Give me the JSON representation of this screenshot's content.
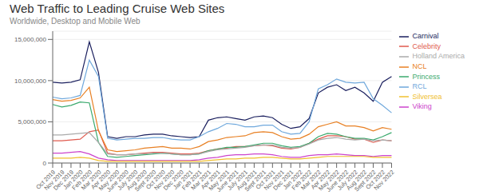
{
  "chart_data": {
    "type": "line",
    "title": "Web Traffic to Leading Cruise Web Sites",
    "subtitle": "Worldwide, Desktop and Mobile Web",
    "categories": [
      "Oct 2019",
      "Nov 2019",
      "Dec 2019",
      "Jan 2020",
      "Feb 2020",
      "Mar 2020",
      "Apr 2020",
      "May 2020",
      "June 2020",
      "July 2020",
      "Aug 2020",
      "Sept 2020",
      "Oct 2020",
      "Nov 2020",
      "Dec 2020",
      "Jan 2021",
      "Feb 2021",
      "Mar 2021",
      "Apr 2021",
      "May 2021",
      "June 2021",
      "July 2021",
      "Aug 2021",
      "Sept 2021",
      "Oct 2021",
      "Nov 2021",
      "Dec 2021",
      "Jan 2022",
      "Feb 2022",
      "Mar 2022",
      "Apr 2022",
      "May 2022",
      "June 2022",
      "July 2022",
      "Aug 2022",
      "Sept 2022",
      "Oct 2022",
      "Nov 2022"
    ],
    "series": [
      {
        "name": "Carnival",
        "color": "#1a1f5e",
        "values": [
          9800000,
          9700000,
          9800000,
          10100000,
          14700000,
          11000000,
          3200000,
          3000000,
          3200000,
          3200000,
          3400000,
          3500000,
          3500000,
          3300000,
          3200000,
          3100000,
          3200000,
          5200000,
          5500000,
          5600000,
          5400000,
          5200000,
          5600000,
          5700000,
          5500000,
          4700000,
          4200000,
          4400000,
          5400000,
          8500000,
          9200000,
          9500000,
          8800000,
          9200000,
          8500000,
          7500000,
          9800000,
          10500000
        ]
      },
      {
        "name": "Celebrity",
        "color": "#e05a4e",
        "values": [
          2700000,
          2700000,
          2800000,
          2900000,
          3800000,
          4000000,
          1200000,
          1000000,
          1000000,
          1100000,
          1200000,
          1300000,
          1300000,
          1200000,
          1100000,
          1100000,
          1200000,
          1500000,
          1700000,
          1800000,
          2000000,
          2000000,
          2100000,
          2200000,
          2100000,
          1800000,
          1700000,
          1900000,
          2400000,
          2900000,
          3300000,
          3300000,
          3200000,
          2900000,
          2900000,
          2500000,
          2800000,
          2700000
        ]
      },
      {
        "name": "NCL",
        "color": "#e88024",
        "values": [
          7700000,
          7500000,
          7600000,
          7900000,
          9200000,
          3900000,
          1600000,
          1400000,
          1500000,
          1600000,
          1800000,
          1900000,
          2000000,
          1800000,
          1800000,
          1700000,
          2000000,
          2600000,
          2800000,
          3100000,
          3200000,
          3300000,
          3700000,
          3800000,
          3700000,
          3200000,
          2900000,
          3000000,
          3500000,
          4400000,
          4700000,
          5000000,
          4500000,
          4500000,
          4300000,
          3900000,
          4300000,
          4100000
        ]
      },
      {
        "name": "Princess",
        "color": "#3baa6e",
        "values": [
          7100000,
          6800000,
          7000000,
          7400000,
          7300000,
          2500000,
          800000,
          700000,
          800000,
          900000,
          1000000,
          1100000,
          1200000,
          1100000,
          1000000,
          1000000,
          1100000,
          1500000,
          1700000,
          1900000,
          1900000,
          2000000,
          2200000,
          2400000,
          2400000,
          2100000,
          1900000,
          2000000,
          2400000,
          3200000,
          3600000,
          3500000,
          3200000,
          3000000,
          3000000,
          2800000,
          3200000,
          3700000
        ]
      },
      {
        "name": "RCL",
        "color": "#6fa8dc",
        "values": [
          8000000,
          7800000,
          7900000,
          8200000,
          12500000,
          10500000,
          3000000,
          2800000,
          2900000,
          3000000,
          3000000,
          3100000,
          3100000,
          2900000,
          2800000,
          2800000,
          3200000,
          3800000,
          4200000,
          4800000,
          4700000,
          4400000,
          4400000,
          4600000,
          4600000,
          3800000,
          3500000,
          3600000,
          5000000,
          9000000,
          9500000,
          10200000,
          9800000,
          9700000,
          9800000,
          7800000,
          7000000,
          6100000
        ]
      },
      {
        "name": "Holland America",
        "color": "#aaaaaa",
        "values": [
          3400000,
          3400000,
          3500000,
          3600000,
          3700000,
          2500000,
          1100000,
          1000000,
          1000000,
          1100000,
          1100000,
          1200000,
          1200000,
          1100000,
          1000000,
          1000000,
          1100000,
          1400000,
          1600000,
          1700000,
          1800000,
          1900000,
          2100000,
          2200000,
          2200000,
          1900000,
          1800000,
          1900000,
          2300000,
          2800000,
          3000000,
          3100000,
          2900000,
          2800000,
          2900000,
          2700000,
          2800000,
          2700000
        ]
      },
      {
        "name": "Viking",
        "color": "#cc44cc",
        "values": [
          1200000,
          1200000,
          1300000,
          1400000,
          1100000,
          600000,
          400000,
          300000,
          300000,
          300000,
          300000,
          300000,
          300000,
          300000,
          300000,
          300000,
          400000,
          600000,
          700000,
          900000,
          1000000,
          1000000,
          1100000,
          1100000,
          1000000,
          800000,
          700000,
          700000,
          900000,
          1000000,
          1000000,
          1100000,
          1000000,
          900000,
          900000,
          800000,
          900000,
          900000
        ]
      },
      {
        "name": "Silversea",
        "color": "#f0c030",
        "values": [
          600000,
          600000,
          600000,
          700000,
          600000,
          300000,
          200000,
          200000,
          200000,
          200000,
          200000,
          200000,
          200000,
          200000,
          200000,
          200000,
          200000,
          300000,
          400000,
          500000,
          500000,
          600000,
          600000,
          700000,
          700000,
          600000,
          500000,
          500000,
          600000,
          700000,
          800000,
          800000,
          800000,
          800000,
          800000,
          700000,
          700000,
          700000
        ]
      }
    ],
    "ylim": [
      0,
      16000000
    ],
    "yticks": [
      0,
      {
        "value": 5000000,
        "label": "5,000,000"
      },
      {
        "value": 10000000,
        "label": "10,000,000"
      },
      {
        "value": 15000000,
        "label": "15,000,000"
      }
    ],
    "grid": true,
    "legend": "right"
  }
}
